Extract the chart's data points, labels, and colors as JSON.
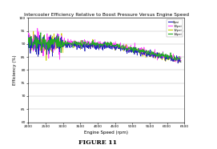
{
  "title": "Intercooler Efficiency Relative to Boost Pressure Versus Engine Speed",
  "xlabel": "Engine Speed (rpm)",
  "ylabel": "Efficiency (%)",
  "figure_label": "FIGURE 11",
  "xlim": [
    2000,
    6500
  ],
  "ylim": [
    60,
    100
  ],
  "yticks": [
    60,
    65,
    70,
    75,
    80,
    85,
    90,
    95,
    100
  ],
  "xticks": [
    2000,
    2500,
    3000,
    3500,
    4000,
    4500,
    5000,
    5500,
    6000,
    6500
  ],
  "legend_labels": [
    "8psi",
    "10psi",
    "12psi",
    "14psi"
  ],
  "line_colors": [
    "#2222bb",
    "#ff44ff",
    "#cccc00",
    "#22aa22"
  ],
  "background_color": "#ffffff",
  "grid_color": "#bbbbbb",
  "figsize": [
    2.71,
    1.86
  ],
  "dpi": 100
}
